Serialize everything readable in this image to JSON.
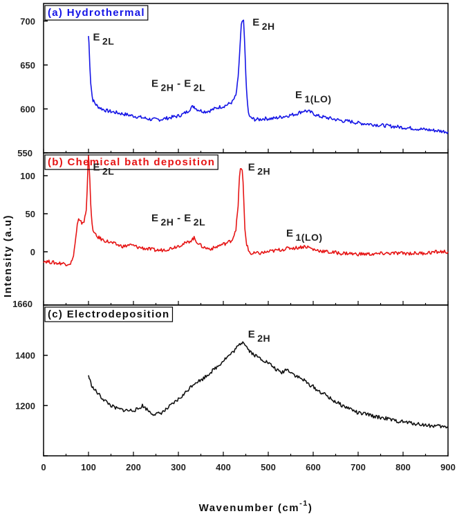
{
  "chart_data": [
    {
      "type": "line",
      "title": "(a) Hydrothermal",
      "color": "#1414e6",
      "xlim": [
        0,
        900
      ],
      "ylim": [
        550,
        720
      ],
      "yticks": [
        550,
        600,
        650,
        700
      ],
      "series": [
        {
          "x": [
            100,
            101,
            103,
            105,
            108,
            110,
            115,
            120,
            130,
            140,
            150,
            160,
            170,
            180,
            190,
            200,
            210,
            220,
            230,
            240,
            250,
            260,
            270,
            280,
            290,
            300,
            310,
            320,
            330,
            335,
            340,
            350,
            360,
            370,
            380,
            390,
            400,
            410,
            420,
            428,
            433,
            437,
            440,
            443,
            445,
            447,
            450,
            453,
            456,
            460,
            465,
            470,
            480,
            490,
            500,
            510,
            520,
            530,
            540,
            550,
            560,
            570,
            580,
            590,
            600,
            610,
            620,
            630,
            640,
            650,
            660,
            670,
            680,
            690,
            700,
            720,
            740,
            760,
            780,
            800,
            820,
            840,
            860,
            880,
            900
          ],
          "y": [
            683,
            675,
            650,
            630,
            615,
            610,
            606,
            603,
            600,
            598,
            597,
            596,
            595,
            594,
            593,
            592,
            591,
            590,
            589,
            588,
            588,
            588,
            589,
            590,
            591,
            592,
            594,
            597,
            602,
            603,
            600,
            598,
            597,
            598,
            600,
            602,
            603,
            605,
            608,
            615,
            635,
            670,
            695,
            700,
            699,
            680,
            640,
            610,
            595,
            590,
            589,
            588,
            588,
            589,
            589,
            589,
            590,
            591,
            592,
            593,
            594,
            596,
            598,
            597,
            595,
            592,
            591,
            590,
            589,
            588,
            587,
            586,
            586,
            585,
            584,
            583,
            582,
            581,
            580,
            579,
            578,
            577,
            576,
            575,
            574
          ]
        }
      ],
      "annotations": [
        {
          "base": "E",
          "sub": "2L",
          "x": 110,
          "y": 678
        },
        {
          "base": "E",
          "sub": "2H",
          "x": 465,
          "y": 695
        },
        {
          "base": "E",
          "sub": "2H",
          "mid": " - ",
          "base2": "E",
          "sub2": "2L",
          "x": 240,
          "y": 625
        },
        {
          "base": "E",
          "sub": "1(LO)",
          "x": 560,
          "y": 612
        }
      ]
    },
    {
      "type": "line",
      "title": "(b) Chemical bath deposition",
      "color": "#e61414",
      "xlim": [
        0,
        900
      ],
      "ylim": [
        -70,
        130
      ],
      "yticks": [
        0,
        50,
        100
      ],
      "series": [
        {
          "x": [
            0,
            10,
            20,
            30,
            40,
            50,
            60,
            65,
            70,
            75,
            78,
            80,
            85,
            90,
            92,
            95,
            97,
            99,
            100,
            101,
            103,
            105,
            108,
            112,
            118,
            125,
            130,
            140,
            150,
            160,
            170,
            180,
            190,
            200,
            210,
            220,
            230,
            240,
            250,
            260,
            270,
            280,
            290,
            300,
            310,
            320,
            330,
            335,
            340,
            350,
            360,
            370,
            380,
            390,
            400,
            410,
            420,
            428,
            433,
            436,
            438,
            440,
            442,
            444,
            446,
            448,
            452,
            456,
            460,
            465,
            470,
            480,
            490,
            500,
            510,
            520,
            530,
            540,
            550,
            560,
            570,
            580,
            590,
            600,
            610,
            620,
            630,
            640,
            650,
            660,
            670,
            680,
            690,
            700,
            720,
            740,
            760,
            780,
            800,
            820,
            840,
            860,
            880,
            900
          ],
          "y": [
            -12,
            -13,
            -14,
            -15,
            -15,
            -16,
            -15,
            -10,
            10,
            35,
            42,
            40,
            38,
            40,
            45,
            55,
            80,
            115,
            128,
            120,
            95,
            60,
            35,
            25,
            20,
            18,
            16,
            14,
            12,
            10,
            8,
            7,
            9,
            8,
            6,
            5,
            4,
            3,
            2,
            2,
            3,
            4,
            6,
            8,
            10,
            12,
            16,
            18,
            14,
            8,
            5,
            4,
            5,
            8,
            10,
            12,
            16,
            30,
            60,
            100,
            110,
            108,
            106,
            90,
            60,
            30,
            10,
            2,
            -2,
            -3,
            -2,
            -2,
            -1,
            0,
            1,
            2,
            3,
            4,
            5,
            5,
            6,
            7,
            6,
            3,
            2,
            1,
            0,
            -1,
            -1,
            -2,
            -2,
            -2,
            -3,
            -3,
            -3,
            -3,
            -2,
            -2,
            -2,
            -2,
            -2,
            -1,
            0,
            0
          ]
        }
      ],
      "annotations": [
        {
          "base": "E",
          "sub": "2L",
          "x": 110,
          "y": 107
        },
        {
          "base": "E",
          "sub": "2H",
          "x": 455,
          "y": 107
        },
        {
          "base": "E",
          "sub": "2H",
          "mid": " - ",
          "base2": "E",
          "sub2": "2L",
          "x": 240,
          "y": 40
        },
        {
          "base": "E",
          "sub": "1(LO)",
          "x": 540,
          "y": 20
        }
      ]
    },
    {
      "type": "line",
      "title": "(c) Electrodeposition",
      "color": "#111111",
      "xlim": [
        0,
        900
      ],
      "ylim": [
        1000,
        1600
      ],
      "yticks": [
        1000,
        1200,
        1400,
        1600
      ],
      "series": [
        {
          "x": [
            100,
            105,
            110,
            120,
            130,
            140,
            150,
            160,
            170,
            180,
            190,
            200,
            210,
            220,
            230,
            240,
            250,
            260,
            270,
            280,
            290,
            300,
            310,
            320,
            330,
            340,
            350,
            360,
            370,
            380,
            390,
            400,
            410,
            420,
            430,
            440,
            445,
            450,
            455,
            460,
            470,
            480,
            490,
            500,
            510,
            520,
            530,
            540,
            550,
            560,
            570,
            580,
            590,
            600,
            610,
            620,
            630,
            640,
            650,
            660,
            670,
            680,
            690,
            700,
            720,
            740,
            760,
            780,
            800,
            820,
            840,
            860,
            880,
            900
          ],
          "y": [
            1320,
            1290,
            1270,
            1250,
            1230,
            1215,
            1200,
            1190,
            1185,
            1182,
            1180,
            1182,
            1185,
            1200,
            1185,
            1170,
            1165,
            1170,
            1180,
            1195,
            1210,
            1225,
            1240,
            1260,
            1280,
            1295,
            1300,
            1315,
            1330,
            1345,
            1360,
            1380,
            1395,
            1410,
            1430,
            1450,
            1455,
            1440,
            1425,
            1415,
            1400,
            1390,
            1380,
            1370,
            1355,
            1340,
            1330,
            1345,
            1335,
            1320,
            1310,
            1300,
            1285,
            1275,
            1260,
            1250,
            1240,
            1225,
            1215,
            1205,
            1195,
            1190,
            1180,
            1170,
            1165,
            1155,
            1150,
            1140,
            1135,
            1130,
            1125,
            1120,
            1118,
            1112
          ]
        }
      ],
      "annotations": [
        {
          "base": "E",
          "sub": "2H",
          "x": 455,
          "y": 1470
        }
      ]
    }
  ],
  "x_axis": {
    "ticks": [
      0,
      100,
      200,
      300,
      400,
      500,
      600,
      700,
      800,
      900
    ],
    "label_main": "Wavenumber (cm",
    "label_sup": "-1",
    "label_end": ")"
  },
  "y_axis": {
    "label": "Intensity (a.u)"
  },
  "overlap_labels": [
    "550",
    "1660"
  ]
}
